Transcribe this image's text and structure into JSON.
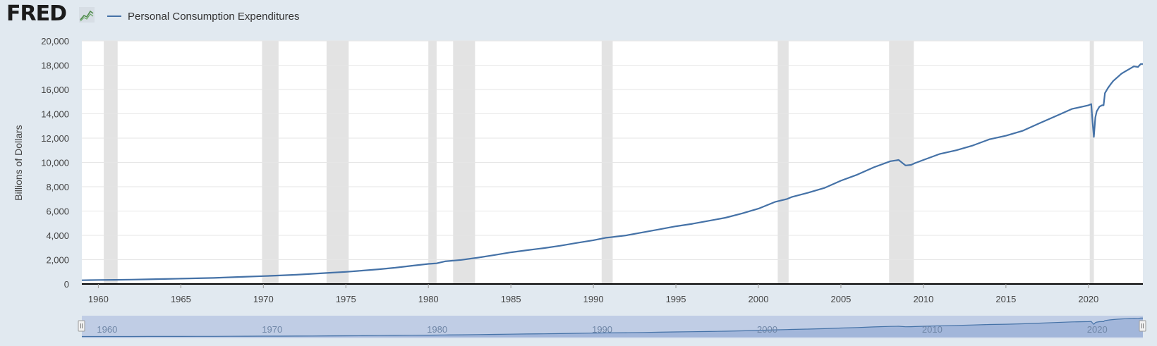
{
  "header": {
    "logo_text": "FRED",
    "legend_label": "Personal Consumption Expenditures"
  },
  "colors": {
    "series": "#4572a7",
    "recession": "#e3e3e3",
    "background": "#e1e9f0",
    "plot": "#ffffff",
    "grid": "#e6e6e6",
    "navigator_fill": "#b8c8e3"
  },
  "chart_data": {
    "type": "line",
    "title": "",
    "xlabel": "",
    "ylabel": "Billions of Dollars",
    "xlim": [
      1959.0,
      2023.3
    ],
    "ylim": [
      0,
      20000
    ],
    "grid": true,
    "legend_position": "top-left",
    "y_ticks": [
      0,
      2000,
      4000,
      6000,
      8000,
      10000,
      12000,
      14000,
      16000,
      18000,
      20000
    ],
    "y_tick_labels": [
      "0",
      "2,000",
      "4,000",
      "6,000",
      "8,000",
      "10,000",
      "12,000",
      "14,000",
      "16,000",
      "18,000",
      "20,000"
    ],
    "x_ticks": [
      1960,
      1965,
      1970,
      1975,
      1980,
      1985,
      1990,
      1995,
      2000,
      2005,
      2010,
      2015,
      2020
    ],
    "x_tick_labels": [
      "1960",
      "1965",
      "1970",
      "1975",
      "1980",
      "1985",
      "1990",
      "1995",
      "2000",
      "2005",
      "2010",
      "2015",
      "2020"
    ],
    "recessions": [
      [
        1960.33,
        1961.17
      ],
      [
        1969.92,
        1970.92
      ],
      [
        1973.83,
        1975.17
      ],
      [
        1980.0,
        1980.5
      ],
      [
        1981.5,
        1982.83
      ],
      [
        1990.5,
        1991.17
      ],
      [
        2001.17,
        2001.83
      ],
      [
        2007.92,
        2009.42
      ],
      [
        2020.08,
        2020.33
      ]
    ],
    "series": [
      {
        "name": "Personal Consumption Expenditures",
        "x": [
          1959.0,
          1960.0,
          1961.0,
          1962.0,
          1963.0,
          1964.0,
          1965.0,
          1966.0,
          1967.0,
          1968.0,
          1969.0,
          1970.0,
          1971.0,
          1972.0,
          1973.0,
          1974.0,
          1975.0,
          1976.0,
          1977.0,
          1978.0,
          1979.0,
          1980.0,
          1980.5,
          1981.0,
          1982.0,
          1983.0,
          1984.0,
          1985.0,
          1986.0,
          1987.0,
          1988.0,
          1989.0,
          1990.0,
          1990.75,
          1991.0,
          1992.0,
          1993.0,
          1994.0,
          1995.0,
          1996.0,
          1997.0,
          1998.0,
          1999.0,
          2000.0,
          2001.0,
          2001.75,
          2002.0,
          2003.0,
          2004.0,
          2005.0,
          2006.0,
          2007.0,
          2008.0,
          2008.5,
          2008.92,
          2009.25,
          2009.5,
          2010.0,
          2011.0,
          2012.0,
          2013.0,
          2014.0,
          2015.0,
          2016.0,
          2017.0,
          2018.0,
          2019.0,
          2020.0,
          2020.17,
          2020.25,
          2020.33,
          2020.42,
          2020.5,
          2020.67,
          2020.83,
          2020.92,
          2021.0,
          2021.17,
          2021.33,
          2021.5,
          2021.75,
          2022.0,
          2022.25,
          2022.5,
          2022.75,
          2023.0,
          2023.17,
          2023.3
        ],
        "y": [
          310,
          330,
          340,
          360,
          380,
          410,
          440,
          470,
          500,
          550,
          600,
          650,
          700,
          760,
          840,
          920,
          1000,
          1100,
          1210,
          1340,
          1500,
          1650,
          1700,
          1860,
          1980,
          2170,
          2380,
          2600,
          2780,
          2950,
          3150,
          3380,
          3600,
          3800,
          3840,
          4000,
          4250,
          4500,
          4750,
          4950,
          5200,
          5450,
          5800,
          6200,
          6750,
          7000,
          7150,
          7500,
          7900,
          8500,
          9000,
          9600,
          10100,
          10200,
          9750,
          9800,
          9950,
          10200,
          10700,
          11000,
          11400,
          11900,
          12200,
          12600,
          13200,
          13800,
          14400,
          14700,
          14800,
          13300,
          12100,
          13700,
          14200,
          14600,
          14700,
          14700,
          15700,
          16100,
          16400,
          16700,
          17000,
          17300,
          17500,
          17700,
          17900,
          17850,
          18100,
          18100
        ]
      }
    ]
  },
  "navigator": {
    "x_tick_labels": [
      "1960",
      "1970",
      "1980",
      "1990",
      "2000",
      "2010",
      "2020"
    ],
    "x_ticks": [
      1960,
      1970,
      1980,
      1990,
      2000,
      2010,
      2020
    ]
  }
}
